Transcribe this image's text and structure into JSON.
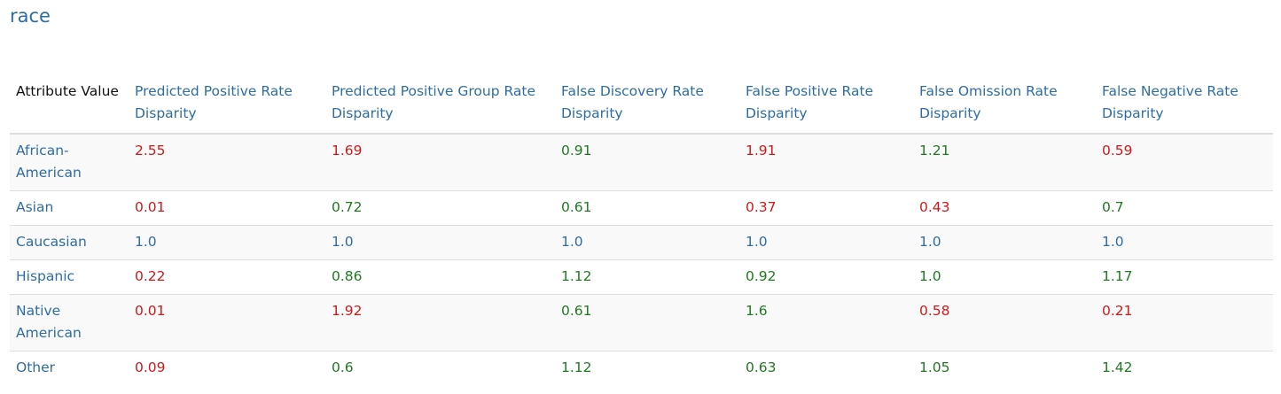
{
  "title": "race",
  "colors": {
    "link_blue": "#2e6da4",
    "fail_red": "#d0181b",
    "pass_green": "#1f7a1f",
    "header_text": "#111111"
  },
  "table": {
    "columns": [
      "Attribute Value",
      "Predicted Positive Rate Disparity",
      "Predicted Positive Group Rate Disparity",
      "False Discovery Rate Disparity",
      "False Positive Rate Disparity",
      "False Omission Rate Disparity",
      "False Negative Rate Disparity"
    ],
    "rows": [
      {
        "attribute": "African-American",
        "cells": [
          {
            "value": "2.55",
            "status": "red"
          },
          {
            "value": "1.69",
            "status": "red"
          },
          {
            "value": "0.91",
            "status": "green"
          },
          {
            "value": "1.91",
            "status": "red"
          },
          {
            "value": "1.21",
            "status": "green"
          },
          {
            "value": "0.59",
            "status": "red"
          }
        ]
      },
      {
        "attribute": "Asian",
        "cells": [
          {
            "value": "0.01",
            "status": "red"
          },
          {
            "value": "0.72",
            "status": "green"
          },
          {
            "value": "0.61",
            "status": "green"
          },
          {
            "value": "0.37",
            "status": "red"
          },
          {
            "value": "0.43",
            "status": "red"
          },
          {
            "value": "0.7",
            "status": "green"
          }
        ]
      },
      {
        "attribute": "Caucasian",
        "cells": [
          {
            "value": "1.0",
            "status": "blue"
          },
          {
            "value": "1.0",
            "status": "blue"
          },
          {
            "value": "1.0",
            "status": "blue"
          },
          {
            "value": "1.0",
            "status": "blue"
          },
          {
            "value": "1.0",
            "status": "blue"
          },
          {
            "value": "1.0",
            "status": "blue"
          }
        ]
      },
      {
        "attribute": "Hispanic",
        "cells": [
          {
            "value": "0.22",
            "status": "red"
          },
          {
            "value": "0.86",
            "status": "green"
          },
          {
            "value": "1.12",
            "status": "green"
          },
          {
            "value": "0.92",
            "status": "green"
          },
          {
            "value": "1.0",
            "status": "green"
          },
          {
            "value": "1.17",
            "status": "green"
          }
        ]
      },
      {
        "attribute": "Native American",
        "cells": [
          {
            "value": "0.01",
            "status": "red"
          },
          {
            "value": "1.92",
            "status": "red"
          },
          {
            "value": "0.61",
            "status": "green"
          },
          {
            "value": "1.6",
            "status": "green"
          },
          {
            "value": "0.58",
            "status": "red"
          },
          {
            "value": "0.21",
            "status": "red"
          }
        ]
      },
      {
        "attribute": "Other",
        "cells": [
          {
            "value": "0.09",
            "status": "red"
          },
          {
            "value": "0.6",
            "status": "green"
          },
          {
            "value": "1.12",
            "status": "green"
          },
          {
            "value": "0.63",
            "status": "green"
          },
          {
            "value": "1.05",
            "status": "green"
          },
          {
            "value": "1.42",
            "status": "green"
          }
        ]
      }
    ]
  }
}
